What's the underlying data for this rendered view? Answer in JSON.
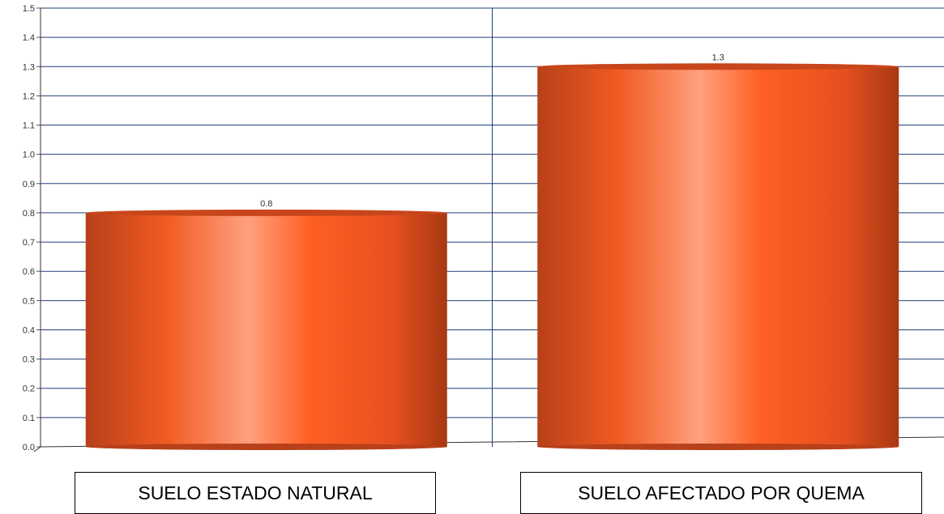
{
  "chart_data": {
    "type": "bar",
    "categories": [
      "SUELO ESTADO NATURAL",
      "SUELO AFECTADO POR QUEMA"
    ],
    "values": [
      0.8,
      1.3
    ],
    "data_labels": [
      "0.8",
      "1.3"
    ],
    "y_ticks": [
      "0.0",
      "0.1",
      "0.2",
      "0.3",
      "0.4",
      "0.5",
      "0.6",
      "0.7",
      "0.8",
      "0.9",
      "1.0",
      "1.1",
      "1.2",
      "1.3",
      "1.4",
      "1.5"
    ],
    "ylim": [
      0,
      1.5
    ],
    "grid": true,
    "colors": {
      "bar": "#ff5f22",
      "bar_dark": "#b8401a",
      "bar_light": "#ffa07e",
      "grid": "#1f3f78"
    }
  }
}
